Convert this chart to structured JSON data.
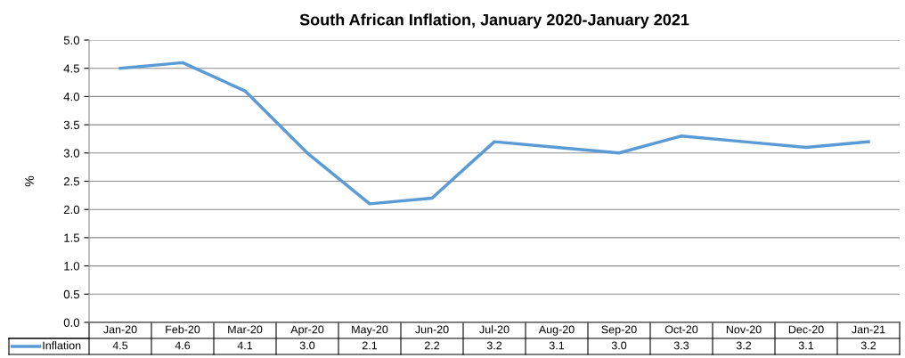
{
  "chart_data": {
    "type": "line",
    "title": "South African Inflation, January 2020-January 2021",
    "ylabel": "%",
    "categories": [
      "Jan-20",
      "Feb-20",
      "Mar-20",
      "Apr-20",
      "May-20",
      "Jun-20",
      "Jul-20",
      "Aug-20",
      "Sep-20",
      "Oct-20",
      "Nov-20",
      "Dec-20",
      "Jan-21"
    ],
    "series": [
      {
        "name": "Inflation",
        "color": "#5b9bd5",
        "values": [
          4.5,
          4.6,
          4.1,
          3.0,
          2.1,
          2.2,
          3.2,
          3.1,
          3.0,
          3.3,
          3.2,
          3.1,
          3.2
        ],
        "value_labels": [
          "4.5",
          "4.6",
          "4.1",
          "3.0",
          "2.1",
          "2.2",
          "3.2",
          "3.1",
          "3.0",
          "3.3",
          "3.2",
          "3.1",
          "3.2"
        ]
      }
    ],
    "ylim": [
      0,
      5
    ],
    "yticks": [
      {
        "value": 0,
        "label": "0.0"
      },
      {
        "value": 0.5,
        "label": "0.5"
      },
      {
        "value": 1,
        "label": "1.0"
      },
      {
        "value": 1.5,
        "label": "1.5"
      },
      {
        "value": 2,
        "label": "2.0"
      },
      {
        "value": 2.5,
        "label": "2.5"
      },
      {
        "value": 3,
        "label": "3.0"
      },
      {
        "value": 3.5,
        "label": "3.5"
      },
      {
        "value": 4,
        "label": "4.0"
      },
      {
        "value": 4.5,
        "label": "4.5"
      },
      {
        "value": 5,
        "label": "5.0"
      }
    ],
    "grid": "y",
    "legend": "bottom left",
    "marker": "none",
    "line_style": "solid"
  }
}
